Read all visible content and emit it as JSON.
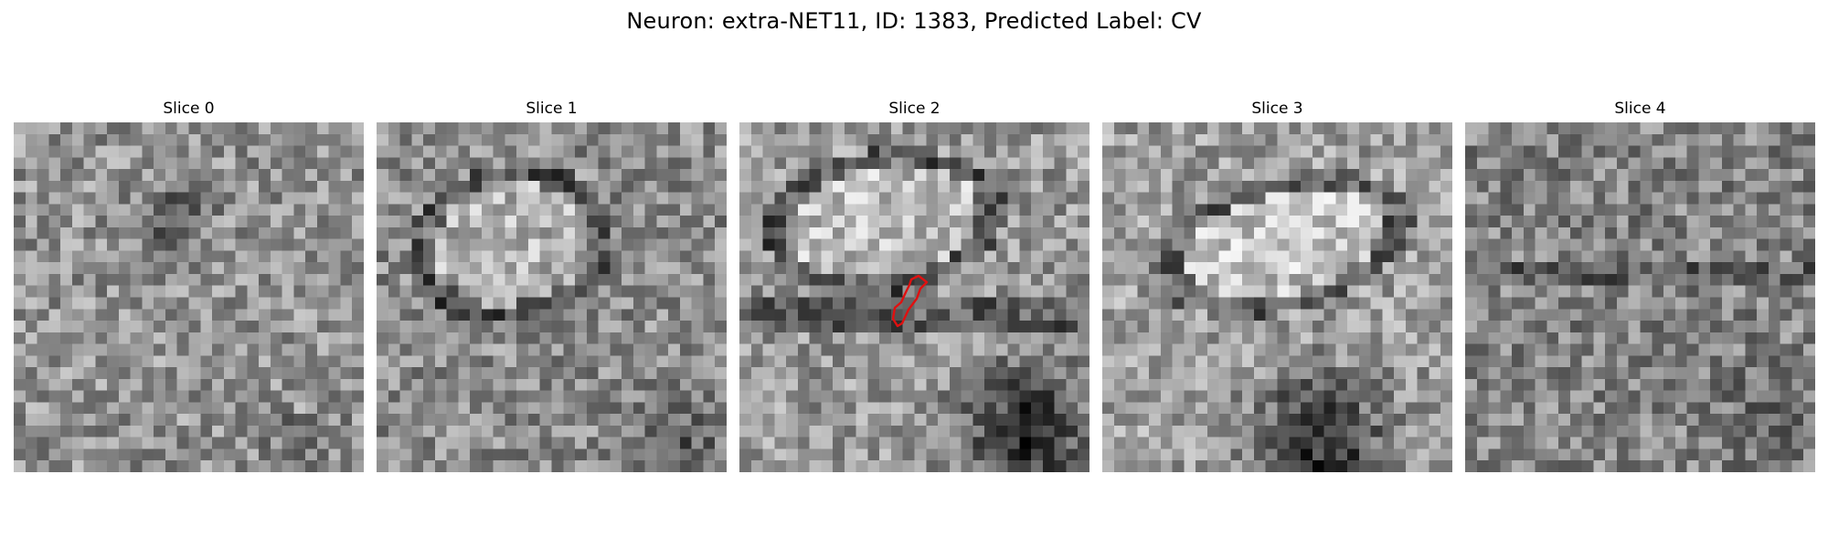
{
  "figure": {
    "suptitle": "Neuron: extra-NET11, ID: 1383, Predicted Label: CV"
  },
  "panels": [
    {
      "title": "Slice 0"
    },
    {
      "title": "Slice 1"
    },
    {
      "title": "Slice 2",
      "has_outline": true
    },
    {
      "title": "Slice 3"
    },
    {
      "title": "Slice 4"
    }
  ],
  "colors": {
    "outline": "#e01010",
    "colormap": "gray"
  }
}
